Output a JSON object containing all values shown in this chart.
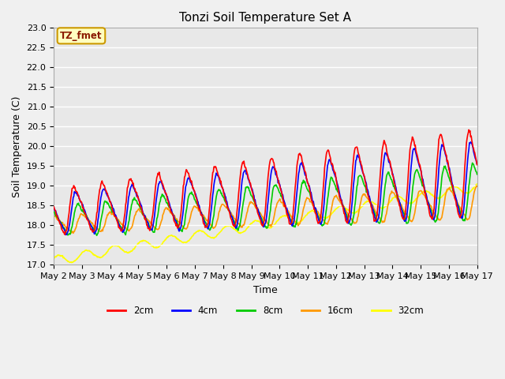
{
  "title": "Tonzi Soil Temperature Set A",
  "xlabel": "Time",
  "ylabel": "Soil Temperature (C)",
  "legend_label": "TZ_fmet",
  "legend_entries": [
    "2cm",
    "4cm",
    "8cm",
    "16cm",
    "32cm"
  ],
  "line_colors": [
    "#ff0000",
    "#0000ff",
    "#00cc00",
    "#ff9900",
    "#ffff00"
  ],
  "line_widths": [
    1.2,
    1.2,
    1.2,
    1.2,
    1.2
  ],
  "ylim": [
    17.0,
    23.0
  ],
  "yticks": [
    17.0,
    17.5,
    18.0,
    18.5,
    19.0,
    19.5,
    20.0,
    20.5,
    21.0,
    21.5,
    22.0,
    22.5,
    23.0
  ],
  "bg_color": "#e8e8e8",
  "fig_bg_color": "#f0f0f0",
  "title_fontsize": 11,
  "axis_label_fontsize": 9,
  "tick_fontsize": 8,
  "num_points": 720,
  "days": 15,
  "start_day": 2
}
